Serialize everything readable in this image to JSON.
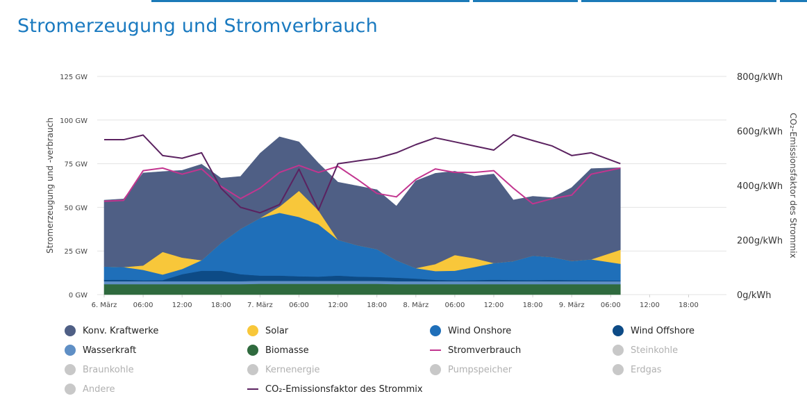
{
  "title": "Stromerzeugung und Stromverbrauch",
  "chart_data": {
    "type": "area",
    "y_left_label": "Stromerzeugung und -verbrauch",
    "y_right_label": "CO₂-Emissionsfaktor des Strommix",
    "y_left_ticks": [
      "0 GW",
      "25 GW",
      "50 GW",
      "75 GW",
      "100 GW",
      "125 GW"
    ],
    "y_right_ticks": [
      "0g/kWh",
      "200g/kWh",
      "400g/kWh",
      "600g/kWh",
      "800g/kWh"
    ],
    "ylim_left": [
      0,
      125
    ],
    "ylim_right": [
      0,
      800
    ],
    "x_ticks": [
      "6. März",
      "06:00",
      "12:00",
      "18:00",
      "7. März",
      "06:00",
      "12:00",
      "18:00",
      "8. März",
      "06:00",
      "12:00",
      "18:00",
      "9. März",
      "06:00",
      "12:00",
      "18:00"
    ],
    "x_hours": [
      0,
      3,
      6,
      9,
      12,
      15,
      18,
      21,
      24,
      27,
      30,
      33,
      36,
      39,
      42,
      45,
      48,
      51,
      54,
      57,
      60,
      63,
      66,
      69,
      72,
      75,
      79.5
    ],
    "series": [
      {
        "name": "Biomasse",
        "color": "#2f6a3e",
        "values": [
          6,
          6,
          6,
          6,
          6,
          6,
          6,
          6,
          6.2,
          6.2,
          6.2,
          6.2,
          6.2,
          6.2,
          6.2,
          6,
          6,
          6,
          6,
          6,
          6,
          6,
          6,
          6,
          6,
          6,
          6
        ]
      },
      {
        "name": "Wasserkraft",
        "color": "#5f8fc5",
        "values": [
          1.7,
          1.7,
          1.7,
          1.7,
          1.7,
          1.7,
          1.7,
          1.7,
          1.7,
          1.7,
          1.7,
          1.7,
          1.7,
          1.7,
          1.7,
          1.7,
          1.7,
          1.7,
          1.7,
          1.7,
          1.7,
          1.7,
          1.7,
          1.7,
          1.7,
          1.7,
          1.7
        ]
      },
      {
        "name": "Wind Offshore",
        "color": "#0d4b86",
        "values": [
          0.8,
          0.9,
          0.5,
          0.6,
          4,
          6,
          6,
          4,
          3,
          3,
          2.6,
          2.4,
          3,
          2.4,
          2.2,
          2,
          1.5,
          0.8,
          0.5,
          0.6,
          0.9,
          0.7,
          0.6,
          0.8,
          0.6,
          0.5,
          0.4
        ]
      },
      {
        "name": "Wind Onshore",
        "color": "#1f6fb9",
        "values": [
          7.6,
          7.2,
          6,
          3.2,
          3,
          6,
          16,
          26,
          33,
          36,
          34,
          30,
          20.5,
          18,
          16,
          10,
          6,
          5,
          5.5,
          7.5,
          9.5,
          10.8,
          14,
          13,
          11,
          12,
          9.6
        ]
      },
      {
        "name": "Solar",
        "color": "#f8c73a",
        "values": [
          0,
          0,
          2.5,
          13,
          6.5,
          0,
          0,
          0,
          0,
          3.5,
          15,
          8,
          0,
          0,
          0,
          0,
          0,
          4,
          9,
          5,
          0,
          0,
          0,
          0,
          0,
          0,
          8
        ]
      },
      {
        "name": "Konv. Kraftwerke",
        "color": "#4f5f85",
        "values": [
          38,
          39,
          53,
          46,
          50,
          55,
          37,
          30,
          37,
          40,
          28,
          27,
          33,
          34,
          34,
          31,
          50,
          52,
          48,
          47,
          51,
          35,
          34,
          34,
          42,
          52,
          47
        ]
      },
      {
        "name": "Stromverbrauch",
        "color": "#c2358f",
        "values": [
          53.5,
          54,
          71,
          72.5,
          69,
          72,
          62,
          55,
          61,
          70,
          74,
          70,
          73.5,
          66,
          58,
          56,
          66,
          72,
          70,
          70,
          71,
          61,
          52,
          55,
          57,
          69,
          72.5
        ]
      },
      {
        "name": "CO₂-Emissionsfaktor des Strommix",
        "color": "#5b2260",
        "values": [
          568,
          568,
          585,
          510,
          500,
          520,
          390,
          320,
          300,
          330,
          460,
          310,
          480,
          490,
          500,
          520,
          550,
          575,
          560,
          545,
          530,
          586,
          565,
          545,
          510,
          520,
          480
        ]
      }
    ],
    "inactive_series": [
      "Steinkohle",
      "Braunkohle",
      "Kernenergie",
      "Pumpspeicher",
      "Erdgas",
      "Andere"
    ]
  },
  "legend": [
    {
      "label": "Konv. Kraftwerke",
      "color": "#4f5f85",
      "type": "dot",
      "active": true
    },
    {
      "label": "Solar",
      "color": "#f8c73a",
      "type": "dot",
      "active": true
    },
    {
      "label": "Wind Onshore",
      "color": "#1f6fb9",
      "type": "dot",
      "active": true
    },
    {
      "label": "Wind Offshore",
      "color": "#0d4b86",
      "type": "dot",
      "active": true
    },
    {
      "label": "Wasserkraft",
      "color": "#5f8fc5",
      "type": "dot",
      "active": true
    },
    {
      "label": "Biomasse",
      "color": "#2f6a3e",
      "type": "dot",
      "active": true
    },
    {
      "label": "Stromverbrauch",
      "color": "#c2358f",
      "type": "line",
      "active": true
    },
    {
      "label": "Steinkohle",
      "color": "#c8c8c8",
      "type": "dot",
      "active": false
    },
    {
      "label": "Braunkohle",
      "color": "#c8c8c8",
      "type": "dot",
      "active": false
    },
    {
      "label": "Kernenergie",
      "color": "#c8c8c8",
      "type": "dot",
      "active": false
    },
    {
      "label": "Pumpspeicher",
      "color": "#c8c8c8",
      "type": "dot",
      "active": false
    },
    {
      "label": "Erdgas",
      "color": "#c8c8c8",
      "type": "dot",
      "active": false
    },
    {
      "label": "Andere",
      "color": "#c8c8c8",
      "type": "dot",
      "active": false
    },
    {
      "label": "CO₂-Emissionsfaktor des Strommix",
      "color": "#5b2260",
      "type": "line",
      "active": true
    }
  ]
}
